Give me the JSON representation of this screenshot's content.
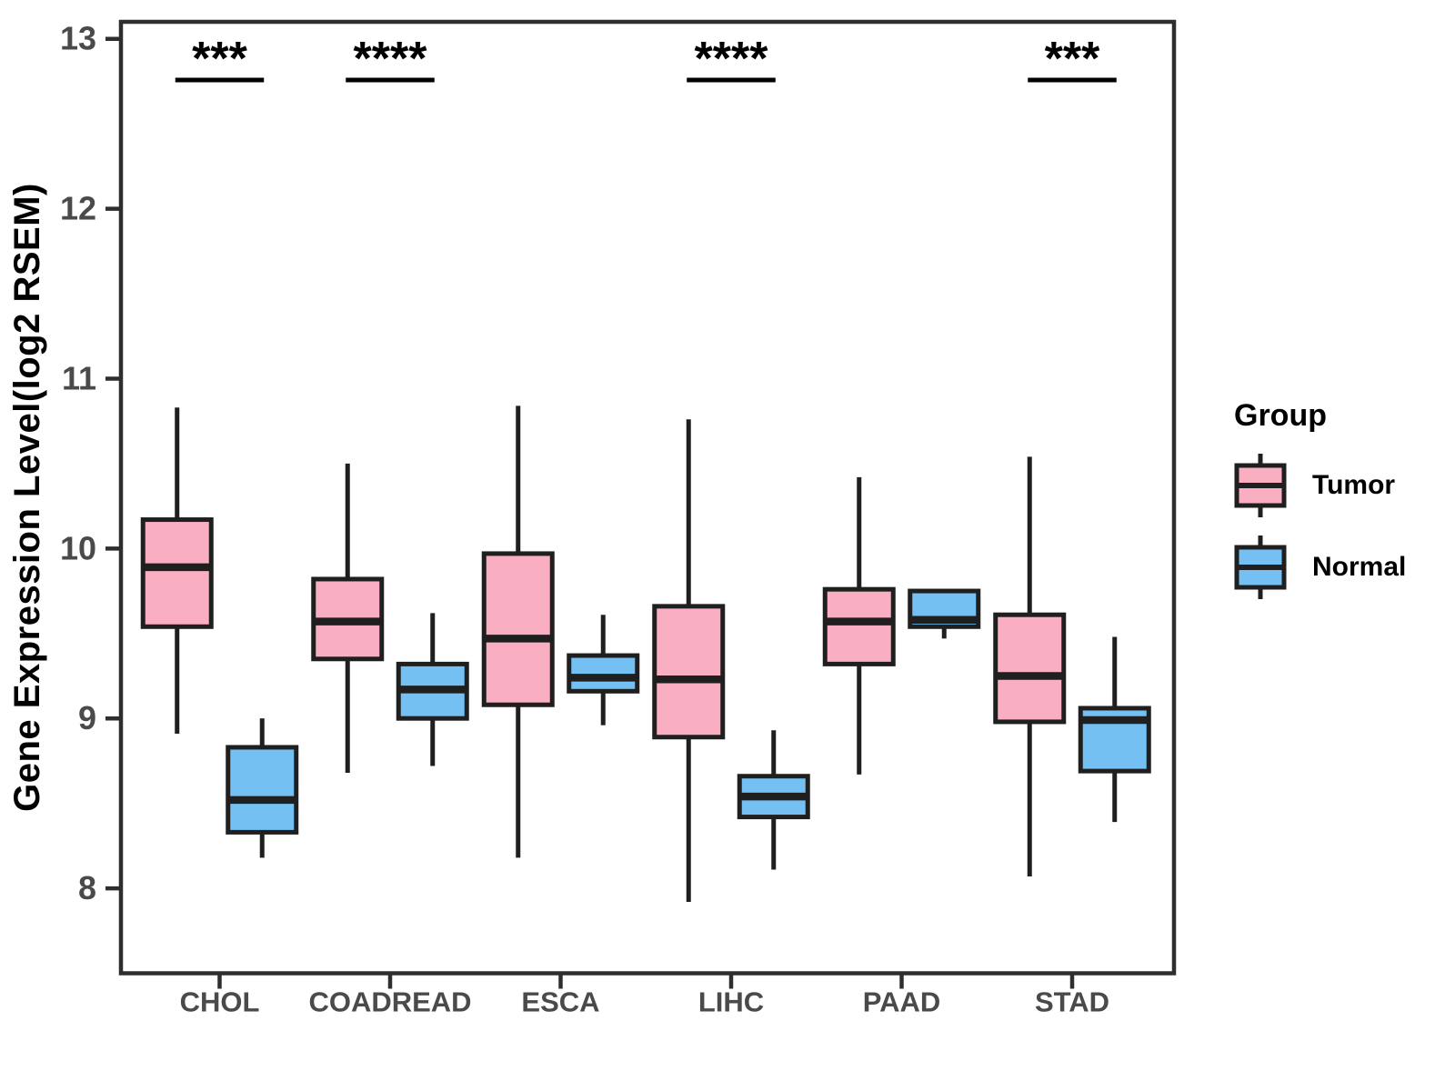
{
  "chart_data": {
    "type": "boxplot",
    "title": "",
    "xlabel": "",
    "ylabel": "Gene Expression Level(log2 RSEM)",
    "ylim": [
      7.5,
      13.1
    ],
    "yticks": [
      8,
      9,
      10,
      11,
      12,
      13
    ],
    "grid": false,
    "categories": [
      "CHOL",
      "COADREAD",
      "ESCA",
      "LIHC",
      "PAAD",
      "STAD"
    ],
    "legend": {
      "title": "Group",
      "position": "right"
    },
    "series": [
      {
        "name": "Tumor",
        "color": "#F9AEC1",
        "stroke": "#1f1f1f",
        "boxes": [
          {
            "category": "CHOL",
            "whisker_low": 8.91,
            "q1": 9.54,
            "median": 9.89,
            "q3": 10.17,
            "whisker_high": 10.83
          },
          {
            "category": "COADREAD",
            "whisker_low": 8.68,
            "q1": 9.35,
            "median": 9.57,
            "q3": 9.82,
            "whisker_high": 10.5
          },
          {
            "category": "ESCA",
            "whisker_low": 8.18,
            "q1": 9.08,
            "median": 9.47,
            "q3": 9.97,
            "whisker_high": 10.84
          },
          {
            "category": "LIHC",
            "whisker_low": 7.92,
            "q1": 8.89,
            "median": 9.23,
            "q3": 9.66,
            "whisker_high": 10.76
          },
          {
            "category": "PAAD",
            "whisker_low": 8.67,
            "q1": 9.32,
            "median": 9.57,
            "q3": 9.76,
            "whisker_high": 10.42
          },
          {
            "category": "STAD",
            "whisker_low": 8.07,
            "q1": 8.98,
            "median": 9.25,
            "q3": 9.61,
            "whisker_high": 10.54
          }
        ]
      },
      {
        "name": "Normal",
        "color": "#74C0F3",
        "stroke": "#1f1f1f",
        "boxes": [
          {
            "category": "CHOL",
            "whisker_low": 8.18,
            "q1": 8.33,
            "median": 8.52,
            "q3": 8.83,
            "whisker_high": 9.0
          },
          {
            "category": "COADREAD",
            "whisker_low": 8.72,
            "q1": 9.0,
            "median": 9.17,
            "q3": 9.32,
            "whisker_high": 9.62
          },
          {
            "category": "ESCA",
            "whisker_low": 8.96,
            "q1": 9.16,
            "median": 9.24,
            "q3": 9.37,
            "whisker_high": 9.61
          },
          {
            "category": "LIHC",
            "whisker_low": 8.11,
            "q1": 8.42,
            "median": 8.54,
            "q3": 8.66,
            "whisker_high": 8.93
          },
          {
            "category": "PAAD",
            "whisker_low": 9.47,
            "q1": 9.54,
            "median": 9.58,
            "q3": 9.75,
            "whisker_high": 9.75
          },
          {
            "category": "STAD",
            "whisker_low": 8.39,
            "q1": 8.69,
            "median": 8.99,
            "q3": 9.06,
            "whisker_high": 9.48
          }
        ]
      }
    ],
    "significance": [
      {
        "category": "CHOL",
        "label": "***"
      },
      {
        "category": "COADREAD",
        "label": "****"
      },
      {
        "category": "LIHC",
        "label": "****"
      },
      {
        "category": "STAD",
        "label": "***"
      }
    ],
    "colors": {
      "panel_border": "#2e2e2e",
      "axis_text": "#4a4a4a",
      "annotation": "#000000"
    }
  }
}
